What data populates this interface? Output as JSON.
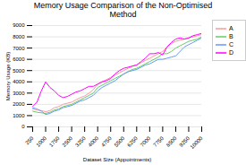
{
  "chart_data": {
    "type": "line",
    "title": "Memory Usage Comparison of the Non-Optimised\nMethod",
    "xlabel": "Dataset Size (Appointments)",
    "ylabel": "Memory Usage (KB)",
    "x": [
      250,
      500,
      750,
      1000,
      1250,
      1500,
      1750,
      2000,
      2250,
      2500,
      2750,
      3000,
      3250,
      3500,
      3750,
      4000,
      4250,
      4500,
      4750,
      5000,
      5250,
      5500,
      5750,
      6000,
      6250,
      6500,
      6750,
      7000,
      7250,
      7500,
      7750,
      8000,
      8250,
      8500,
      8750,
      9000,
      9250,
      9500,
      9750,
      10000
    ],
    "series": [
      {
        "name": "A",
        "color": "#FF9999",
        "values": [
          1600,
          1500,
          1450,
          1350,
          1450,
          1700,
          1800,
          2000,
          2100,
          2200,
          2400,
          2600,
          2750,
          3000,
          3300,
          3800,
          4000,
          4200,
          4400,
          4600,
          4800,
          5000,
          5200,
          5400,
          5500,
          5700,
          5900,
          6100,
          6300,
          6500,
          6700,
          7100,
          7400,
          7600,
          7700,
          7800,
          7900,
          8000,
          8100,
          8200
        ]
      },
      {
        "name": "B",
        "color": "#66CC66",
        "values": [
          1400,
          1300,
          1250,
          1200,
          1300,
          1500,
          1600,
          1800,
          1900,
          2000,
          2200,
          2400,
          2600,
          2800,
          3000,
          3500,
          3700,
          3900,
          4100,
          4300,
          4500,
          4700,
          4900,
          5100,
          5200,
          5400,
          5600,
          5800,
          6000,
          6200,
          6500,
          6500,
          6700,
          7000,
          7200,
          7400,
          7600,
          7700,
          7800,
          8000
        ]
      },
      {
        "name": "C",
        "color": "#6699FF",
        "values": [
          1700,
          1600,
          1400,
          1100,
          1200,
          1400,
          1500,
          1700,
          1800,
          1900,
          2100,
          2300,
          2400,
          2600,
          2800,
          3200,
          3500,
          3700,
          3900,
          4100,
          4400,
          4700,
          4900,
          5000,
          5100,
          5300,
          5500,
          5600,
          5800,
          6000,
          6000,
          6100,
          6200,
          6300,
          6700,
          7100,
          7300,
          7500,
          7700,
          7900
        ]
      },
      {
        "name": "D",
        "color": "#FF00FF",
        "values": [
          1800,
          2200,
          3200,
          4000,
          3500,
          3200,
          2800,
          2600,
          2700,
          2900,
          3100,
          3200,
          3400,
          3600,
          3600,
          3800,
          4000,
          4100,
          4300,
          4700,
          5000,
          5200,
          5300,
          5400,
          5500,
          5800,
          6100,
          6500,
          6500,
          6600,
          6400,
          7100,
          7500,
          7800,
          7900,
          7800,
          7900,
          8100,
          8200,
          8300
        ]
      }
    ],
    "xlim": [
      250,
      10000
    ],
    "ylim": [
      0,
      9000
    ],
    "xticks": [
      250,
      1000,
      1750,
      2500,
      3250,
      4000,
      4750,
      5500,
      6250,
      7000,
      7750,
      8500,
      9250,
      10000
    ],
    "yticks": [
      0,
      1000,
      2000,
      3000,
      4000,
      5000,
      6000,
      7000,
      8000,
      9000
    ],
    "grid": true,
    "legend": "upper right"
  }
}
